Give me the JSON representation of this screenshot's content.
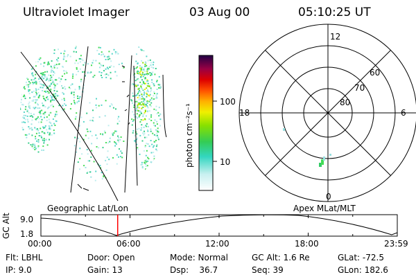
{
  "header": {
    "instrument": "Ultraviolet Imager",
    "date": "03 Aug 00",
    "time": "05:10:25 UT"
  },
  "colorbar": {
    "label": "photon cm⁻²s⁻¹",
    "ticks": [
      "100",
      "10"
    ]
  },
  "polar": {
    "mlt_labels": {
      "top": "12",
      "left": "18",
      "right": "6",
      "bottom": "0"
    },
    "lat_labels": [
      "60",
      "70",
      "80"
    ]
  },
  "timeline": {
    "left_title": "Geographic Lat/Lon",
    "right_title": "Apex MLat/MLT",
    "ylabel": "GC Alt",
    "y_ticks": [
      "9.0",
      "1.8"
    ],
    "x_ticks": [
      "00:00",
      "06:00",
      "12:00",
      "18:00",
      "23:59"
    ],
    "current_marker_hours": 5.17,
    "marker_color": "#ff0000"
  },
  "status": {
    "flt": "Flt: LBHL",
    "ip": "IP:  9.0",
    "door": "Door: Open",
    "gain": "Gain: 13",
    "mode": "Mode: Normal",
    "dsp": "Dsp:    36.7",
    "gcalt": "GC Alt: 1.6 Re",
    "seq": "Seq: 39",
    "glat": "GLat: -72.5",
    "glon": "GLon: 182.6"
  }
}
